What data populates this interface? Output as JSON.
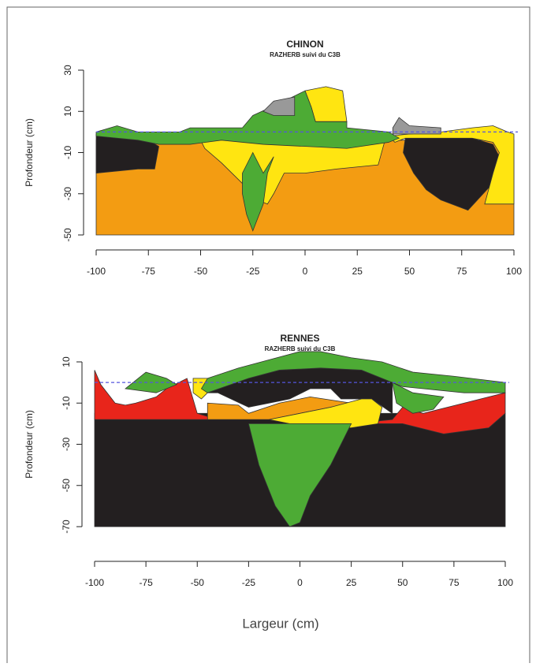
{
  "chart_data": [
    {
      "type": "polygon",
      "title": "CHINON",
      "subtitle": "RAZHERB suivi du C3B",
      "ylabel": "Profondeur (cm)",
      "xlim": [
        -100,
        100
      ],
      "ylim": [
        -50,
        30
      ],
      "xticks": [
        -100,
        -75,
        -50,
        -25,
        0,
        25,
        50,
        75,
        100
      ],
      "yticks": [
        30,
        10,
        -10,
        -30,
        -50
      ],
      "hline": 0,
      "hline_color": "#5555dd",
      "polygons": [
        {
          "color": "#f39c12",
          "x": [
            -100,
            100,
            100,
            -100
          ],
          "y": [
            -50,
            -50,
            -4,
            -4
          ]
        },
        {
          "color": "#231f20",
          "x": [
            -100,
            -95,
            -85,
            -75,
            -70,
            -72,
            -80,
            -90,
            -100
          ],
          "y": [
            -1,
            -1,
            -2,
            -4,
            -7,
            -18,
            -18,
            -19,
            -20
          ]
        },
        {
          "color": "#231f20",
          "x": [
            48,
            60,
            80,
            90,
            93,
            88,
            78,
            65,
            58,
            52,
            47
          ],
          "y": [
            -3,
            -3,
            -3,
            -6,
            -12,
            -27,
            -38,
            -33,
            -28,
            -20,
            -10
          ]
        },
        {
          "color": "#ffe511",
          "x": [
            40,
            50,
            65,
            80,
            90,
            97,
            100,
            100,
            86,
            90,
            93,
            90,
            80,
            48,
            43
          ],
          "y": [
            -2,
            -1,
            0,
            2,
            3,
            0,
            -1,
            -35,
            -35,
            -20,
            -10,
            -5,
            -3,
            -3,
            -5
          ]
        },
        {
          "color": "#ffe511",
          "x": [
            -50,
            -40,
            -20,
            0,
            20,
            38,
            35,
            15,
            0,
            -10,
            -15,
            -18,
            -25,
            -30,
            -40,
            -48
          ],
          "y": [
            -4,
            -2,
            -3,
            -5,
            -6,
            -5,
            -16,
            -18,
            -20,
            -20,
            -30,
            -35,
            -32,
            -25,
            -15,
            -8
          ]
        },
        {
          "color": "#ffe511",
          "x": [
            0,
            10,
            18,
            20,
            5,
            3
          ],
          "y": [
            20,
            22,
            20,
            5,
            5,
            12
          ]
        },
        {
          "color": "#4dab35",
          "x": [
            -100,
            -90,
            -80,
            -70,
            -60,
            -55,
            -30,
            -25,
            -10,
            0,
            3,
            5,
            20,
            20,
            40,
            45,
            40,
            20,
            0,
            -20,
            -40,
            -55,
            -70,
            -80,
            -100
          ],
          "y": [
            0,
            3,
            0,
            0,
            0,
            2,
            2,
            8,
            15,
            20,
            12,
            5,
            5,
            2,
            0,
            -3,
            -5,
            -8,
            -7,
            -6,
            -4,
            -6,
            -6,
            -4,
            -2
          ]
        },
        {
          "color": "#4dab35",
          "x": [
            -30,
            -25,
            -20,
            -15,
            -18,
            -20,
            -25,
            -28,
            -30
          ],
          "y": [
            -20,
            -10,
            -20,
            -12,
            -20,
            -35,
            -48,
            -40,
            -30
          ]
        },
        {
          "color": "#999999",
          "x": [
            -20,
            -15,
            -5,
            -5,
            -15
          ],
          "y": [
            10,
            15,
            17,
            8,
            8
          ]
        },
        {
          "color": "#999999",
          "x": [
            45,
            50,
            65,
            65,
            42,
            42
          ],
          "y": [
            7,
            3,
            2,
            -1,
            -1,
            2
          ]
        }
      ]
    },
    {
      "type": "polygon",
      "title": "RENNES",
      "subtitle": "RAZHERB suivi du C3B",
      "ylabel": "Profondeur (cm)",
      "xlabel": "Largeur (cm)",
      "xlim": [
        -100,
        100
      ],
      "ylim": [
        -70,
        10
      ],
      "xticks": [
        -100,
        -75,
        -50,
        -25,
        0,
        25,
        50,
        75,
        100
      ],
      "yticks": [
        10,
        -10,
        -30,
        -50,
        -70
      ],
      "hline": 0,
      "hline_color": "#5555dd",
      "polygons": [
        {
          "color": "#231f20",
          "x": [
            -100,
            100,
            100,
            -100
          ],
          "y": [
            -70,
            -70,
            -15,
            -15
          ]
        },
        {
          "color": "#e8251b",
          "x": [
            -100,
            -97,
            -90,
            -85,
            -80,
            -70,
            -65,
            -55,
            -50,
            -40,
            -25,
            -100
          ],
          "y": [
            6,
            -1,
            -10,
            -11,
            -10,
            -7,
            -3,
            2,
            -15,
            -18,
            -18,
            -18
          ]
        },
        {
          "color": "#e8251b",
          "x": [
            45,
            50,
            60,
            80,
            100,
            100,
            92,
            70,
            50,
            25
          ],
          "y": [
            -18,
            -12,
            -15,
            -10,
            -5,
            -15,
            -22,
            -25,
            -20,
            -20
          ]
        },
        {
          "color": "#231f20",
          "x": [
            -45,
            -25,
            -10,
            10,
            30,
            45,
            45,
            35,
            20,
            15,
            5,
            -5,
            -25,
            -40
          ],
          "y": [
            -5,
            2,
            6,
            7,
            6,
            0,
            -15,
            -8,
            -8,
            -3,
            -3,
            -8,
            -12,
            -5
          ]
        },
        {
          "color": "#f39c12",
          "x": [
            -45,
            -30,
            -25,
            -10,
            5,
            25,
            -15,
            -45
          ],
          "y": [
            -10,
            -11,
            -15,
            -10,
            -7,
            -10,
            -18,
            -18
          ]
        },
        {
          "color": "#ffe511",
          "x": [
            -15,
            0,
            15,
            30,
            35,
            40,
            38,
            25,
            10,
            -5
          ],
          "y": [
            -18,
            -15,
            -12,
            -8,
            -8,
            -12,
            -20,
            -22,
            -22,
            -20
          ]
        },
        {
          "color": "#ffe511",
          "x": [
            -52,
            -45,
            -45,
            -48,
            -52
          ],
          "y": [
            2,
            2,
            -5,
            -8,
            -5
          ]
        },
        {
          "color": "#4dab35",
          "x": [
            -45,
            -30,
            -15,
            0,
            10,
            25,
            40,
            55,
            75,
            100,
            100,
            80,
            60,
            50,
            45,
            30,
            10,
            -10,
            -25,
            -45,
            -48
          ],
          "y": [
            2,
            7,
            11,
            15,
            15,
            12,
            10,
            5,
            3,
            0,
            -5,
            -5,
            -3,
            -2,
            0,
            6,
            7,
            6,
            2,
            -5,
            -3
          ]
        },
        {
          "color": "#4dab35",
          "x": [
            45,
            55,
            70,
            65,
            55,
            47
          ],
          "y": [
            0,
            -5,
            -7,
            -13,
            -15,
            -10
          ]
        },
        {
          "color": "#4dab35",
          "x": [
            -85,
            -75,
            -65,
            -60,
            -70
          ],
          "y": [
            -3,
            5,
            2,
            -1,
            -5
          ]
        },
        {
          "color": "#4dab35",
          "x": [
            -25,
            -10,
            15,
            25,
            15,
            5,
            0,
            -5,
            -12,
            -20
          ],
          "y": [
            -20,
            -20,
            -20,
            -20,
            -40,
            -55,
            -68,
            -70,
            -60,
            -40
          ]
        }
      ]
    }
  ]
}
